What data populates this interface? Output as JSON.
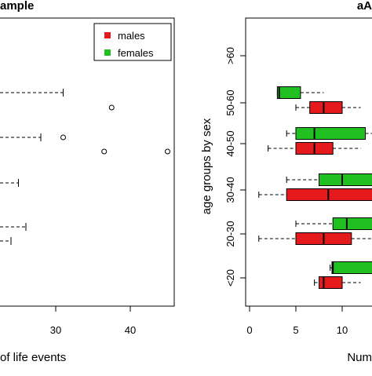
{
  "colors": {
    "males": "#e41a1c",
    "females": "#1fc01f",
    "frame": "#000000"
  },
  "chart_data": [
    {
      "type": "boxplot",
      "title": "ample",
      "xlabel": "of life events",
      "x_ticks": [
        "30",
        "40"
      ],
      "xlim": [
        -2,
        48
      ],
      "grid": false,
      "legend": {
        "placement": "top-right",
        "entries": [
          "males",
          "females"
        ]
      },
      "groups": [
        {
          "category": "row1-whisker",
          "whisker_hi": 31
        },
        {
          "category": "row2-whisker",
          "whisker_hi": 22,
          "outliers": [
            37.5
          ]
        },
        {
          "category": "row3-whisker",
          "whisker_hi": 28,
          "outliers": [
            31,
            36.5,
            45
          ]
        },
        {
          "category": "row4-whisker",
          "whisker_hi": 25
        },
        {
          "category": "row5-whisker",
          "whisker_hi": 26
        },
        {
          "category": "row6-whisker",
          "whisker_hi": 24
        },
        {
          "category": "row7-whisker",
          "whisker_hi": 21.5
        }
      ]
    },
    {
      "type": "boxplot",
      "title": "aA",
      "xlabel": "Num",
      "ylabel": "age groups by sex",
      "x_ticks": [
        "0",
        "5",
        "10"
      ],
      "xlim": [
        0,
        13.5
      ],
      "categories": [
        ">60",
        "50-60",
        "40-50",
        "30-40",
        "20-30",
        "<20"
      ],
      "grid": false,
      "series": [
        {
          "name": "females",
          "boxes": [
            {
              "group": "50-60",
              "min": 3,
              "q1": 3,
              "median": 3.2,
              "q3": 5.5,
              "max": 8
            },
            {
              "group": "40-50",
              "min": 4,
              "q1": 5,
              "median": 7,
              "q3": 12.5,
              "max": 13.5
            },
            {
              "group": "30-40",
              "min": 4,
              "q1": 7.5,
              "median": 10,
              "q3": 13.5,
              "max": 13.5
            },
            {
              "group": "20-30",
              "min": 5,
              "q1": 9,
              "median": 10.5,
              "q3": 13.5,
              "max": 13.5
            },
            {
              "group": "<20",
              "min": 8.7,
              "q1": 8.9,
              "median": 9,
              "q3": 13.5,
              "max": 13.5
            }
          ]
        },
        {
          "name": "males",
          "boxes": [
            {
              "group": "50-60",
              "min": 5,
              "q1": 6.5,
              "median": 8,
              "q3": 10,
              "max": 12
            },
            {
              "group": "40-50",
              "min": 2,
              "q1": 5,
              "median": 7,
              "q3": 9,
              "max": 12
            },
            {
              "group": "30-40",
              "min": 1,
              "q1": 4,
              "median": 8.5,
              "q3": 13.5,
              "max": 13.5
            },
            {
              "group": "20-30",
              "min": 1,
              "q1": 5,
              "median": 8,
              "q3": 11,
              "max": 13.5
            },
            {
              "group": "<20",
              "min": 7,
              "q1": 7.5,
              "median": 8,
              "q3": 10,
              "max": 12
            }
          ]
        }
      ]
    }
  ]
}
